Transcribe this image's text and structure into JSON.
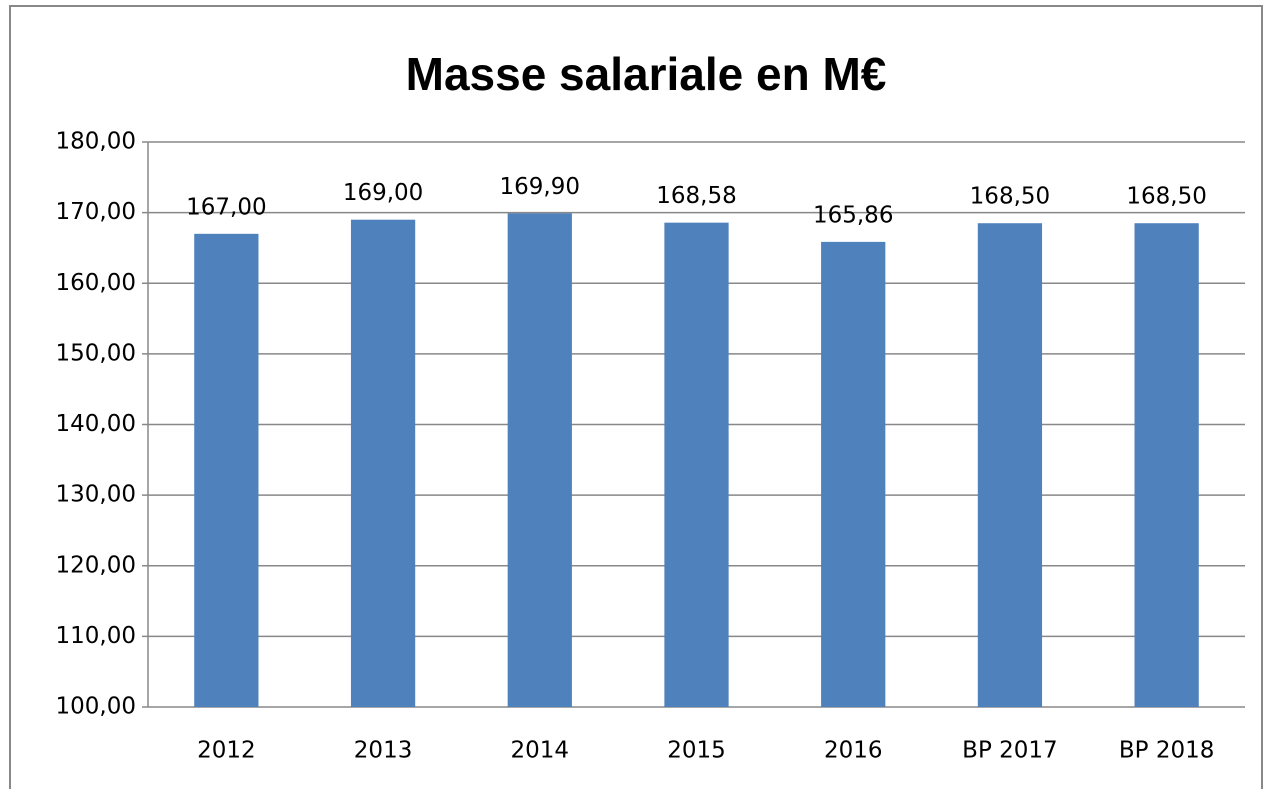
{
  "chart_data": {
    "type": "bar",
    "title": "Masse salariale en M€",
    "categories": [
      "2012",
      "2013",
      "2014",
      "2015",
      "2016",
      "BP 2017",
      "BP 2018"
    ],
    "values": [
      167.0,
      169.0,
      169.9,
      168.58,
      165.86,
      168.5,
      168.5
    ],
    "value_labels": [
      "167,00",
      "169,00",
      "169,90",
      "168,58",
      "165,86",
      "168,50",
      "168,50"
    ],
    "color": "#4f81bd",
    "ylim": [
      100,
      180
    ],
    "yticks": [
      {
        "value": 100,
        "label": "100,00"
      },
      {
        "value": 110,
        "label": "110,00"
      },
      {
        "value": 120,
        "label": "120,00"
      },
      {
        "value": 130,
        "label": "130,00"
      },
      {
        "value": 140,
        "label": "140,00"
      },
      {
        "value": 150,
        "label": "150,00"
      },
      {
        "value": 160,
        "label": "160,00"
      },
      {
        "value": 170,
        "label": "170,00"
      },
      {
        "value": 180,
        "label": "180,00"
      }
    ],
    "grid": true
  }
}
